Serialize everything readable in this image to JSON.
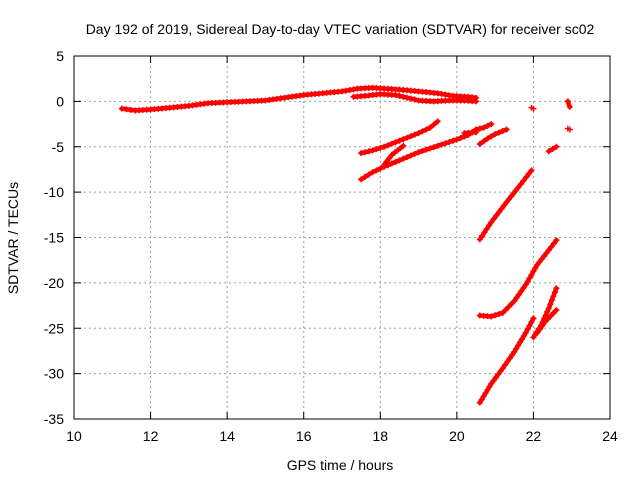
{
  "chart_data": {
    "type": "scatter",
    "title": "Day 192 of 2019, Sidereal Day-to-day VTEC variation (SDTVAR) for receiver sc02",
    "xlabel": "GPS time / hours",
    "ylabel": "SDTVAR / TECUs",
    "xlim": [
      10,
      24
    ],
    "ylim": [
      -35,
      5
    ],
    "x_ticks": [
      "10",
      "12",
      "14",
      "16",
      "18",
      "20",
      "22",
      "24"
    ],
    "y_ticks": [
      "5",
      "0",
      "-5",
      "-10",
      "-15",
      "-20",
      "-25",
      "-30",
      "-35"
    ],
    "grid": true,
    "marker": "+",
    "color": "#ff0000",
    "series": [
      {
        "segments": [
          [
            [
              11.25,
              -0.8
            ],
            [
              11.6,
              -1.0
            ],
            [
              12.0,
              -0.9
            ],
            [
              12.5,
              -0.7
            ],
            [
              13.0,
              -0.5
            ],
            [
              13.5,
              -0.2
            ],
            [
              14.0,
              -0.1
            ],
            [
              14.5,
              0.0
            ],
            [
              15.0,
              0.1
            ],
            [
              15.5,
              0.4
            ],
            [
              16.0,
              0.7
            ],
            [
              16.5,
              0.9
            ],
            [
              17.0,
              1.1
            ],
            [
              17.4,
              1.4
            ],
            [
              17.8,
              1.5
            ],
            [
              18.5,
              1.3
            ],
            [
              19.0,
              1.1
            ],
            [
              19.5,
              0.9
            ],
            [
              19.9,
              0.6
            ],
            [
              20.3,
              0.5
            ],
            [
              20.5,
              0.4
            ]
          ],
          [
            [
              17.3,
              0.5
            ],
            [
              17.6,
              0.6
            ],
            [
              18.0,
              0.8
            ],
            [
              18.4,
              0.7
            ],
            [
              18.7,
              0.4
            ],
            [
              19.0,
              0.1
            ],
            [
              19.4,
              0.0
            ],
            [
              19.8,
              0.1
            ],
            [
              20.2,
              0.1
            ],
            [
              20.5,
              0.0
            ]
          ],
          [
            [
              17.5,
              -5.7
            ],
            [
              17.8,
              -5.4
            ],
            [
              18.1,
              -5.0
            ],
            [
              18.4,
              -4.5
            ],
            [
              18.7,
              -4.0
            ],
            [
              19.0,
              -3.5
            ],
            [
              19.3,
              -2.9
            ],
            [
              19.5,
              -2.2
            ]
          ],
          [
            [
              17.5,
              -8.6
            ],
            [
              17.8,
              -7.8
            ],
            [
              18.1,
              -7.2
            ],
            [
              18.5,
              -6.5
            ],
            [
              19.0,
              -5.6
            ],
            [
              19.5,
              -4.9
            ],
            [
              20.0,
              -4.2
            ],
            [
              20.3,
              -3.7
            ],
            [
              20.5,
              -3.1
            ],
            [
              20.7,
              -2.9
            ],
            [
              20.9,
              -2.5
            ]
          ],
          [
            [
              18.1,
              -7.0
            ],
            [
              18.3,
              -5.9
            ],
            [
              18.6,
              -4.9
            ]
          ],
          [
            [
              20.2,
              -3.5
            ],
            [
              20.5,
              -3.4
            ]
          ],
          [
            [
              20.6,
              -4.7
            ],
            [
              20.8,
              -4.1
            ],
            [
              21.0,
              -3.6
            ],
            [
              21.3,
              -3.1
            ]
          ],
          [
            [
              20.6,
              -15.2
            ],
            [
              20.9,
              -13.3
            ],
            [
              21.3,
              -11.1
            ],
            [
              21.6,
              -9.5
            ],
            [
              21.95,
              -7.6
            ]
          ],
          [
            [
              20.6,
              -23.6
            ],
            [
              20.9,
              -23.7
            ],
            [
              21.2,
              -23.3
            ],
            [
              21.5,
              -22.0
            ],
            [
              21.8,
              -20.2
            ],
            [
              22.1,
              -18.0
            ],
            [
              22.4,
              -16.4
            ],
            [
              22.6,
              -15.3
            ]
          ],
          [
            [
              20.6,
              -33.2
            ],
            [
              20.9,
              -31.1
            ],
            [
              21.2,
              -29.4
            ],
            [
              21.5,
              -27.6
            ],
            [
              21.8,
              -25.5
            ],
            [
              22.0,
              -23.9
            ]
          ],
          [
            [
              22.0,
              -26.0
            ],
            [
              22.2,
              -24.7
            ],
            [
              22.4,
              -22.8
            ],
            [
              22.6,
              -20.6
            ]
          ],
          [
            [
              22.1,
              -25.5
            ],
            [
              22.3,
              -24.3
            ],
            [
              22.6,
              -23.0
            ]
          ],
          [
            [
              22.4,
              -5.5
            ],
            [
              22.6,
              -5.0
            ]
          ],
          [
            [
              21.95,
              -0.7
            ]
          ],
          [
            [
              22.9,
              0.0
            ],
            [
              22.95,
              -0.6
            ]
          ],
          [
            [
              22.9,
              -3.0
            ]
          ]
        ]
      }
    ]
  }
}
